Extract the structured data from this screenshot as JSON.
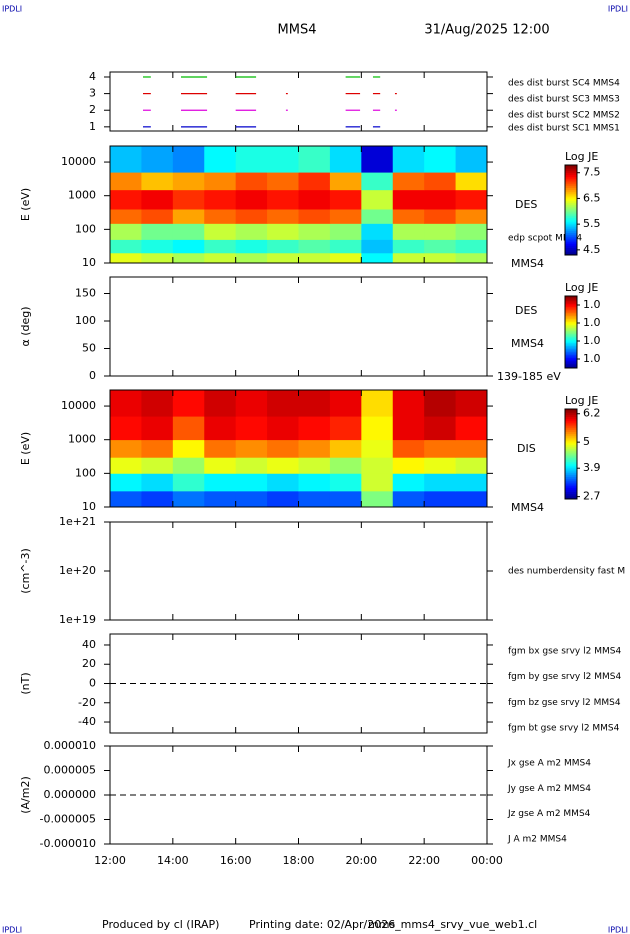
{
  "header": {
    "corner_left": "IPDLI",
    "corner_right": "IPDLI",
    "title": "MMS4",
    "datetime": "31/Aug/2025 12:00"
  },
  "footer": {
    "credit": "Produced by cl (IRAP)",
    "printing_date": "Printing date: 02/Apr/2026",
    "file": "mms_mms4_srvy_vue_web1.cl",
    "corner_left": "IPDLI",
    "corner_right": "IPDLI"
  },
  "chart_data": [
    {
      "type": "timeline",
      "xlim": [
        12,
        24
      ],
      "ylim": [
        0.75,
        4.3
      ],
      "yticks": [
        1,
        2,
        3,
        4
      ],
      "series": [
        {
          "name": "des dist burst SC1 MMS1",
          "color": "#0000cc",
          "level": 1,
          "intervals": [
            [
              13.05,
              13.3
            ],
            [
              14.26,
              15.09
            ],
            [
              16.0,
              16.65
            ],
            [
              19.5,
              19.96
            ],
            [
              20.37,
              20.6
            ]
          ]
        },
        {
          "name": "des dist burst SC2 MMS2",
          "color": "#dd00dd",
          "level": 2,
          "intervals": [
            [
              13.05,
              13.3
            ],
            [
              14.26,
              15.09
            ],
            [
              16.0,
              16.65
            ],
            [
              17.6,
              17.66
            ],
            [
              19.5,
              19.96
            ],
            [
              20.37,
              20.6
            ],
            [
              21.07,
              21.13
            ]
          ]
        },
        {
          "name": "des dist burst SC3 MMS3",
          "color": "#dd0000",
          "level": 3,
          "intervals": [
            [
              13.05,
              13.3
            ],
            [
              14.26,
              15.09
            ],
            [
              16.0,
              16.65
            ],
            [
              17.6,
              17.66
            ],
            [
              19.5,
              19.96
            ],
            [
              20.37,
              20.6
            ],
            [
              21.07,
              21.13
            ]
          ]
        },
        {
          "name": "des dist burst SC4 MMS4",
          "color": "#00bb00",
          "level": 4,
          "intervals": [
            [
              13.05,
              13.3
            ],
            [
              14.26,
              15.09
            ],
            [
              16.0,
              16.65
            ],
            [
              19.5,
              19.96
            ],
            [
              20.37,
              20.6
            ]
          ]
        }
      ]
    },
    {
      "type": "spectrogram",
      "ylabel": "E (eV)",
      "log_y": true,
      "xlim": [
        12,
        24
      ],
      "ylim": [
        10,
        30000
      ],
      "yticks": [
        10,
        100,
        1000,
        10000
      ],
      "labels": [
        "DES",
        "edp scpot MMS4",
        "MMS4"
      ],
      "colorbar": {
        "title": "Log JE",
        "zlim": [
          4.3,
          7.8
        ],
        "ticks": [
          7.5,
          6.5,
          5.5,
          4.5
        ]
      },
      "time_edges": [
        12,
        13,
        14,
        15,
        16,
        17,
        18,
        19,
        20,
        21,
        22,
        23,
        24
      ],
      "energy_edges": [
        10,
        20,
        50,
        150,
        400,
        1500,
        5000,
        30000
      ],
      "z": [
        [
          6.4,
          6.3,
          6.2,
          6.3,
          6.2,
          6.3,
          6.3,
          6.4,
          5.6,
          6.3,
          6.3,
          6.2
        ],
        [
          5.8,
          5.7,
          5.6,
          5.8,
          5.7,
          5.8,
          5.9,
          5.8,
          5.4,
          5.8,
          5.9,
          5.8
        ],
        [
          6.2,
          6.0,
          6.0,
          6.3,
          6.2,
          6.3,
          6.2,
          6.1,
          5.5,
          6.2,
          6.2,
          6.1
        ],
        [
          7.0,
          7.1,
          6.8,
          7.0,
          7.1,
          7.0,
          7.1,
          7.0,
          6.0,
          7.0,
          7.1,
          6.9
        ],
        [
          7.3,
          7.4,
          7.2,
          7.3,
          7.4,
          7.3,
          7.4,
          7.3,
          6.3,
          7.4,
          7.4,
          7.3
        ],
        [
          6.9,
          6.7,
          6.8,
          6.9,
          7.1,
          7.0,
          7.2,
          6.8,
          5.8,
          7.0,
          7.1,
          6.6
        ],
        [
          5.4,
          5.3,
          5.2,
          5.6,
          5.7,
          5.7,
          5.8,
          5.5,
          4.6,
          5.5,
          5.6,
          5.4
        ]
      ]
    },
    {
      "type": "spectrogram",
      "ylabel": "α (deg)",
      "log_y": false,
      "xlim": [
        12,
        24
      ],
      "ylim": [
        0,
        180
      ],
      "yticks": [
        0,
        50,
        100,
        150
      ],
      "labels": [
        "DES",
        "MMS4",
        "139-185 eV"
      ],
      "colorbar": {
        "title": "Log JE",
        "zlim": [
          0.96,
          1.04
        ],
        "ticks": [
          {
            "value": 1.03,
            "label": "1.0"
          },
          {
            "value": 1.01,
            "label": "1.0"
          },
          {
            "value": 0.99,
            "label": "1.0"
          },
          {
            "value": 0.97,
            "label": "1.0"
          }
        ]
      }
    },
    {
      "type": "spectrogram",
      "ylabel": "E (eV)",
      "log_y": true,
      "xlim": [
        12,
        24
      ],
      "ylim": [
        10,
        30000
      ],
      "yticks": [
        10,
        100,
        1000,
        10000
      ],
      "labels": [
        "DIS",
        "MMS4"
      ],
      "colorbar": {
        "title": "Log JE",
        "zlim": [
          2.6,
          6.4
        ],
        "ticks": [
          6.2,
          5.0,
          3.9,
          2.7
        ]
      },
      "time_edges": [
        12,
        13,
        14,
        15,
        16,
        17,
        18,
        19,
        20,
        21,
        22,
        23,
        24
      ],
      "energy_edges": [
        10,
        30,
        100,
        300,
        1000,
        5000,
        30000
      ],
      "z": [
        [
          3.4,
          3.3,
          3.5,
          3.4,
          3.4,
          3.3,
          3.4,
          3.4,
          4.5,
          3.4,
          3.3,
          3.3
        ],
        [
          4.0,
          3.9,
          4.2,
          4.0,
          4.0,
          3.9,
          4.0,
          4.1,
          4.8,
          4.0,
          3.9,
          3.9
        ],
        [
          4.9,
          4.8,
          4.6,
          4.9,
          4.8,
          4.9,
          4.8,
          4.6,
          4.8,
          5.0,
          4.9,
          4.8
        ],
        [
          5.4,
          5.5,
          5.0,
          5.5,
          5.4,
          5.5,
          5.4,
          5.2,
          4.9,
          5.6,
          5.5,
          5.5
        ],
        [
          5.9,
          6.0,
          5.6,
          6.0,
          5.9,
          6.0,
          5.9,
          5.8,
          5.0,
          6.0,
          6.1,
          5.9
        ],
        [
          6.0,
          6.1,
          5.9,
          6.1,
          6.0,
          6.1,
          6.1,
          6.0,
          5.1,
          6.0,
          6.2,
          6.1
        ]
      ]
    },
    {
      "type": "line",
      "ylabel": "(cm^-3)",
      "log_y": true,
      "xlim": [
        12,
        24
      ],
      "ylim": [
        1e+19,
        1e+21
      ],
      "yticks": [
        {
          "value": 1e+19,
          "label": "1e+19"
        },
        {
          "value": 1e+20,
          "label": "1e+20"
        },
        {
          "value": 1e+21,
          "label": "1e+21"
        }
      ],
      "series": [
        {
          "name": "des numberdensity fast M",
          "color": "#000000"
        }
      ]
    },
    {
      "type": "line",
      "ylabel": "(nT)",
      "log_y": false,
      "xlim": [
        12,
        24
      ],
      "ylim": [
        -51.4,
        51.4
      ],
      "yticks": [
        -40,
        -20,
        0,
        20,
        40
      ],
      "reference_line": 0,
      "series": [
        {
          "name": "fgm bx gse srvy l2 MMS4",
          "color": "#dd0000"
        },
        {
          "name": "fgm by gse srvy l2 MMS4",
          "color": "#00bb00"
        },
        {
          "name": "fgm bz gse srvy l2 MMS4",
          "color": "#0000cc"
        },
        {
          "name": "fgm bt gse srvy l2 MMS4",
          "color": "#000000"
        }
      ]
    },
    {
      "type": "line",
      "ylabel": "(A/m2)",
      "log_y": false,
      "xlim": [
        12,
        24
      ],
      "ylim": [
        -1e-05,
        1e-05
      ],
      "yticks": [
        {
          "value": -1e-05,
          "label": "-0.000010"
        },
        {
          "value": -5e-06,
          "label": "-0.000005"
        },
        {
          "value": 0,
          "label": "0.000000"
        },
        {
          "value": 5e-06,
          "label": "0.000005"
        },
        {
          "value": 1e-05,
          "label": "0.000010"
        }
      ],
      "reference_line": 0,
      "xticks": [
        {
          "value": 12,
          "label": "12:00"
        },
        {
          "value": 14,
          "label": "14:00"
        },
        {
          "value": 16,
          "label": "16:00"
        },
        {
          "value": 18,
          "label": "18:00"
        },
        {
          "value": 20,
          "label": "20:00"
        },
        {
          "value": 22,
          "label": "22:00"
        },
        {
          "value": 24,
          "label": "00:00"
        }
      ],
      "series": [
        {
          "name": "Jx gse A m2 MMS4",
          "color": "#dd0000"
        },
        {
          "name": "Jy gse A m2 MMS4",
          "color": "#00bb00"
        },
        {
          "name": "Jz gse A m2 MMS4",
          "color": "#0000cc"
        },
        {
          "name": "J A m2 MMS4",
          "color": "#000000"
        }
      ]
    }
  ]
}
